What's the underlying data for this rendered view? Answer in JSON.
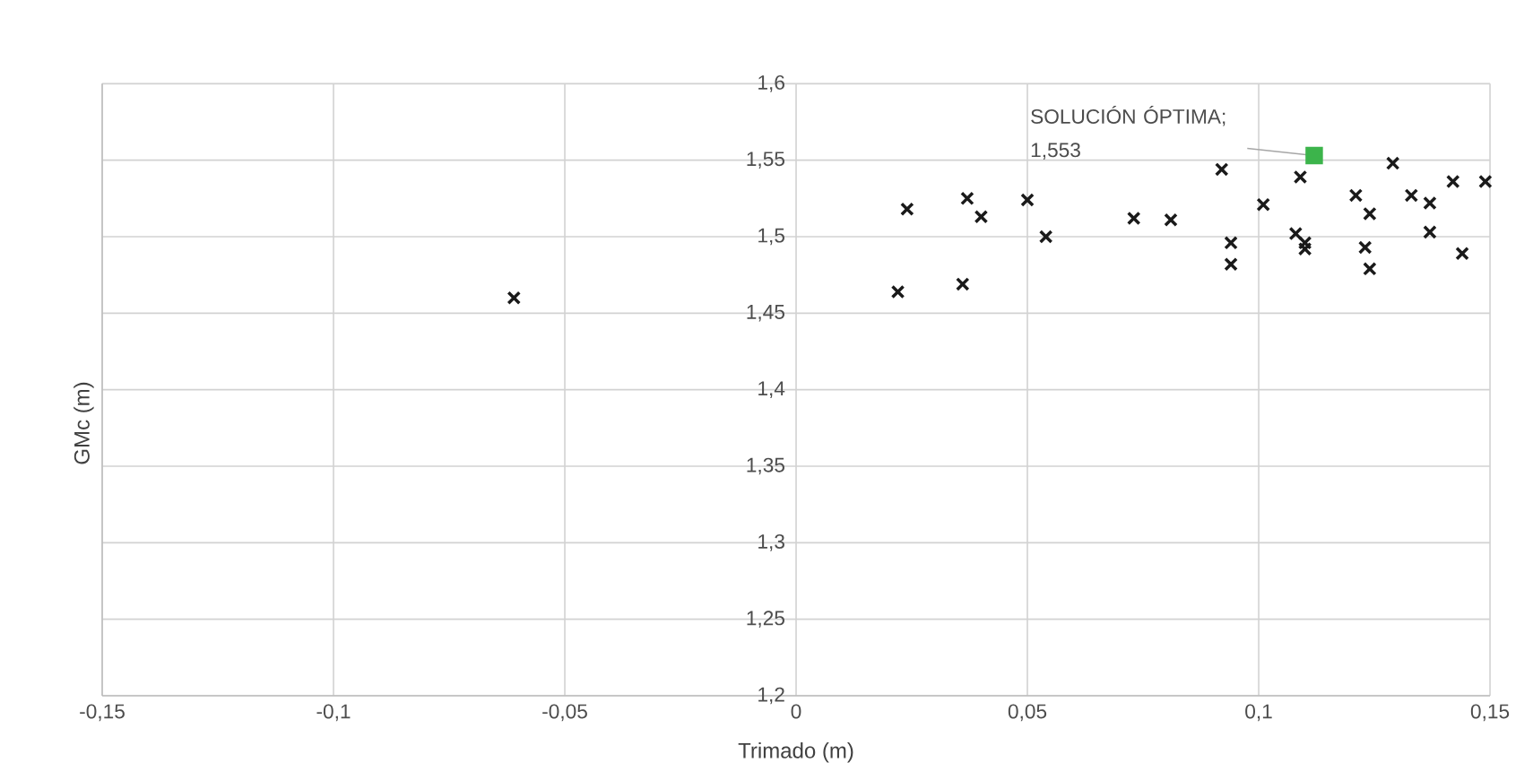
{
  "chart_data": {
    "type": "scatter",
    "xlabel": "Trimado (m)",
    "ylabel": "GMc (m)",
    "grid": true,
    "xlim": [
      -0.15,
      0.15
    ],
    "ylim": [
      1.2,
      1.6
    ],
    "xticks": [
      {
        "value": -0.15,
        "label": "-0,15"
      },
      {
        "value": -0.1,
        "label": "-0,1"
      },
      {
        "value": -0.05,
        "label": "-0,05"
      },
      {
        "value": 0,
        "label": "0"
      },
      {
        "value": 0.05,
        "label": "0,05"
      },
      {
        "value": 0.1,
        "label": "0,1"
      },
      {
        "value": 0.15,
        "label": "0,15"
      }
    ],
    "yticks": [
      {
        "value": 1.2,
        "label": "1,2"
      },
      {
        "value": 1.25,
        "label": "1,25"
      },
      {
        "value": 1.3,
        "label": "1,3"
      },
      {
        "value": 1.35,
        "label": "1,35"
      },
      {
        "value": 1.4,
        "label": "1,4"
      },
      {
        "value": 1.45,
        "label": "1,45"
      },
      {
        "value": 1.5,
        "label": "1,5"
      },
      {
        "value": 1.55,
        "label": "1,55"
      },
      {
        "value": 1.6,
        "label": "1,6"
      }
    ],
    "series": [
      {
        "color": "#1a1a1a",
        "marker": "cross",
        "x": [
          -0.061,
          0.022,
          0.024,
          0.036,
          0.037,
          0.04,
          0.05,
          0.054,
          0.073,
          0.081,
          0.092,
          0.094,
          0.094,
          0.101,
          0.108,
          0.109,
          0.11,
          0.11,
          0.121,
          0.123,
          0.124,
          0.124,
          0.129,
          0.133,
          0.137,
          0.137,
          0.142,
          0.144,
          0.149
        ],
        "values": [
          1.46,
          1.464,
          1.518,
          1.469,
          1.525,
          1.513,
          1.524,
          1.5,
          1.512,
          1.511,
          1.544,
          1.496,
          1.482,
          1.521,
          1.502,
          1.539,
          1.496,
          1.492,
          1.527,
          1.493,
          1.515,
          1.479,
          1.548,
          1.527,
          1.522,
          1.503,
          1.536,
          1.489,
          1.536
        ]
      },
      {
        "color": "#3cb44b",
        "marker": "square",
        "x": [
          0.112
        ],
        "values": [
          1.553
        ]
      }
    ],
    "annotations": [
      {
        "text": "SOLUCIÓN ÓPTIMA; 1,553",
        "x": 0.112,
        "y": 1.553
      }
    ]
  }
}
